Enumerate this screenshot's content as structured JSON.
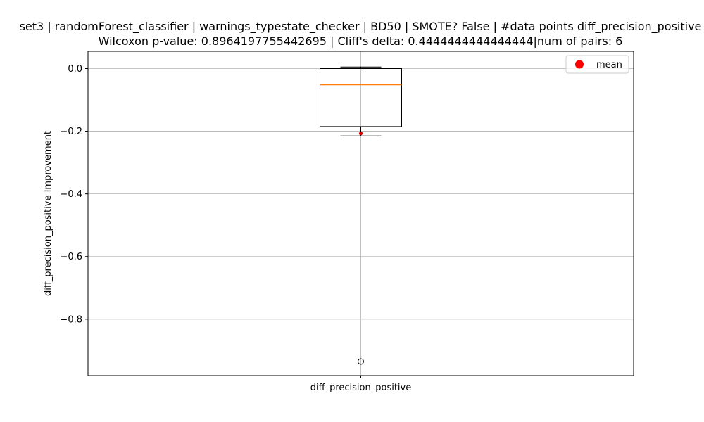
{
  "chart_data": {
    "type": "box",
    "title_line1": "set3 | randomForest_classifier | warnings_typestate_checker | BD50 | SMOTE? False | #data points diff_precision_positive",
    "title_line2": "Wilcoxon p-value: 0.8964197755442695 | Cliff's delta: 0.4444444444444444|num of pairs: 6",
    "xlabel": "",
    "ylabel": "diff_precision_positive Improvement",
    "categories": [
      "diff_precision_positive"
    ],
    "ylim": [
      -0.98,
      0.055
    ],
    "yticks": [
      0.0,
      -0.2,
      -0.4,
      -0.6,
      -0.8
    ],
    "ytick_labels": [
      "0.0",
      "−0.2",
      "−0.4",
      "−0.6",
      "−0.8"
    ],
    "grid": true,
    "box": {
      "whisker_high": 0.005,
      "q3": 0.0,
      "median": -0.052,
      "q1": -0.185,
      "whisker_low": -0.215,
      "outliers": [
        -0.935
      ],
      "mean": -0.207
    },
    "legend": {
      "position": "top-right",
      "entries": [
        "mean"
      ]
    },
    "colors": {
      "median": "#ff7f0e",
      "mean": "#ff0000",
      "mean_dot": "#cc0000",
      "box": "#000000",
      "grid": "#b0b0b0"
    }
  }
}
